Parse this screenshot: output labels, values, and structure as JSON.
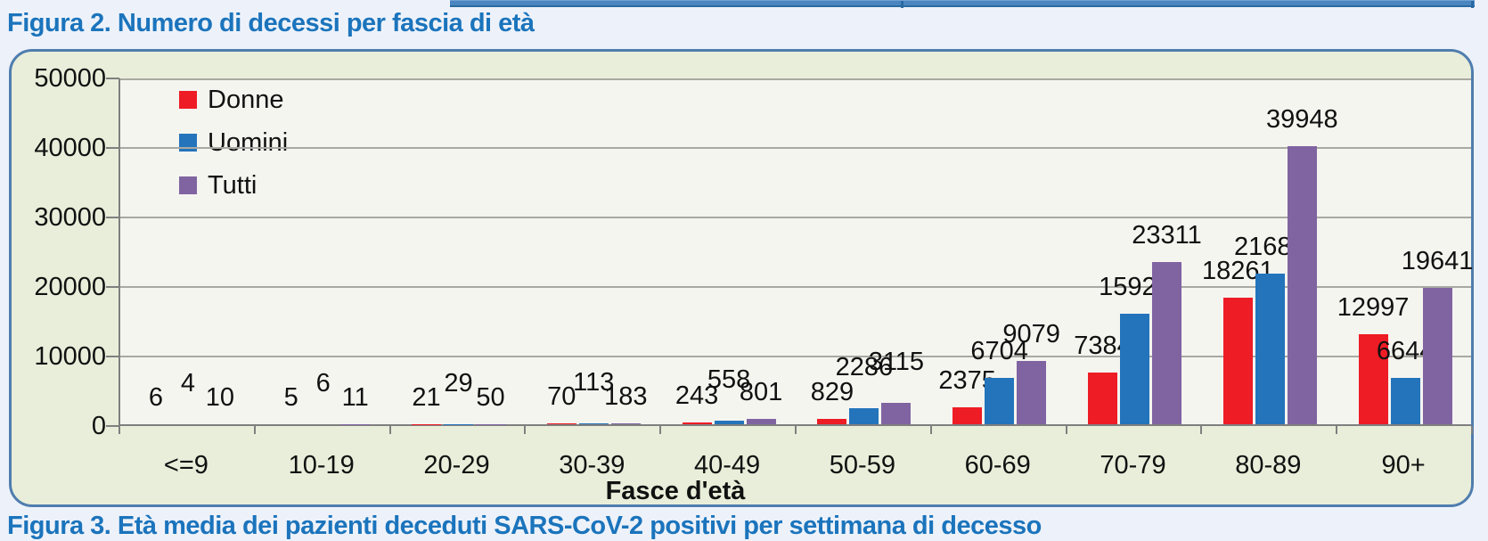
{
  "header": {
    "title": "Figura 2. Numero di decessi per fascia di età"
  },
  "footer": {
    "caption_partial": "Figura 3. Età media dei pazienti deceduti SARS-CoV-2 positivi per settimana di decesso"
  },
  "chart_data": {
    "type": "bar",
    "title": "",
    "categories": [
      "<=9",
      "10-19",
      "20-29",
      "30-39",
      "40-49",
      "50-59",
      "60-69",
      "70-79",
      "80-89",
      "90+"
    ],
    "series": [
      {
        "name": "Donne",
        "color": "#EE1C25",
        "values": [
          6,
          5,
          21,
          70,
          243,
          829,
          2375,
          7384,
          18261,
          12997
        ]
      },
      {
        "name": "Uomini",
        "color": "#2374BB",
        "values": [
          4,
          6,
          29,
          113,
          558,
          2286,
          6704,
          15927,
          21687,
          6644
        ]
      },
      {
        "name": "Tutti",
        "color": "#8064A2",
        "values": [
          10,
          11,
          50,
          183,
          801,
          3115,
          9079,
          23311,
          39948,
          19641
        ]
      }
    ],
    "xlabel": "Fasce d'età",
    "ylabel": "",
    "ylim": [
      0,
      50000
    ],
    "ytick_step": 10000,
    "ytick_labels": [
      "0",
      "10000",
      "20000",
      "30000",
      "40000",
      "50000"
    ],
    "grid": true,
    "legend_entries": [
      "Donne",
      "Uomini",
      "Tutti"
    ],
    "legend_position": "top-left-inside",
    "data_labels": true
  },
  "colors": {
    "page_background": "#EDF2FA",
    "container_background": "#E9EEDA",
    "container_border": "#4F7DAE",
    "plot_background": "#F5F5F0",
    "gridline": "#A9A9A3",
    "axis": "#7F7F7F",
    "heading_blue": "#1B74BC",
    "table_edge_blue": "#4C86C0",
    "donne_red": "#EE1C25",
    "uomini_blue": "#2374BB",
    "tutti_purple": "#8064A2"
  }
}
